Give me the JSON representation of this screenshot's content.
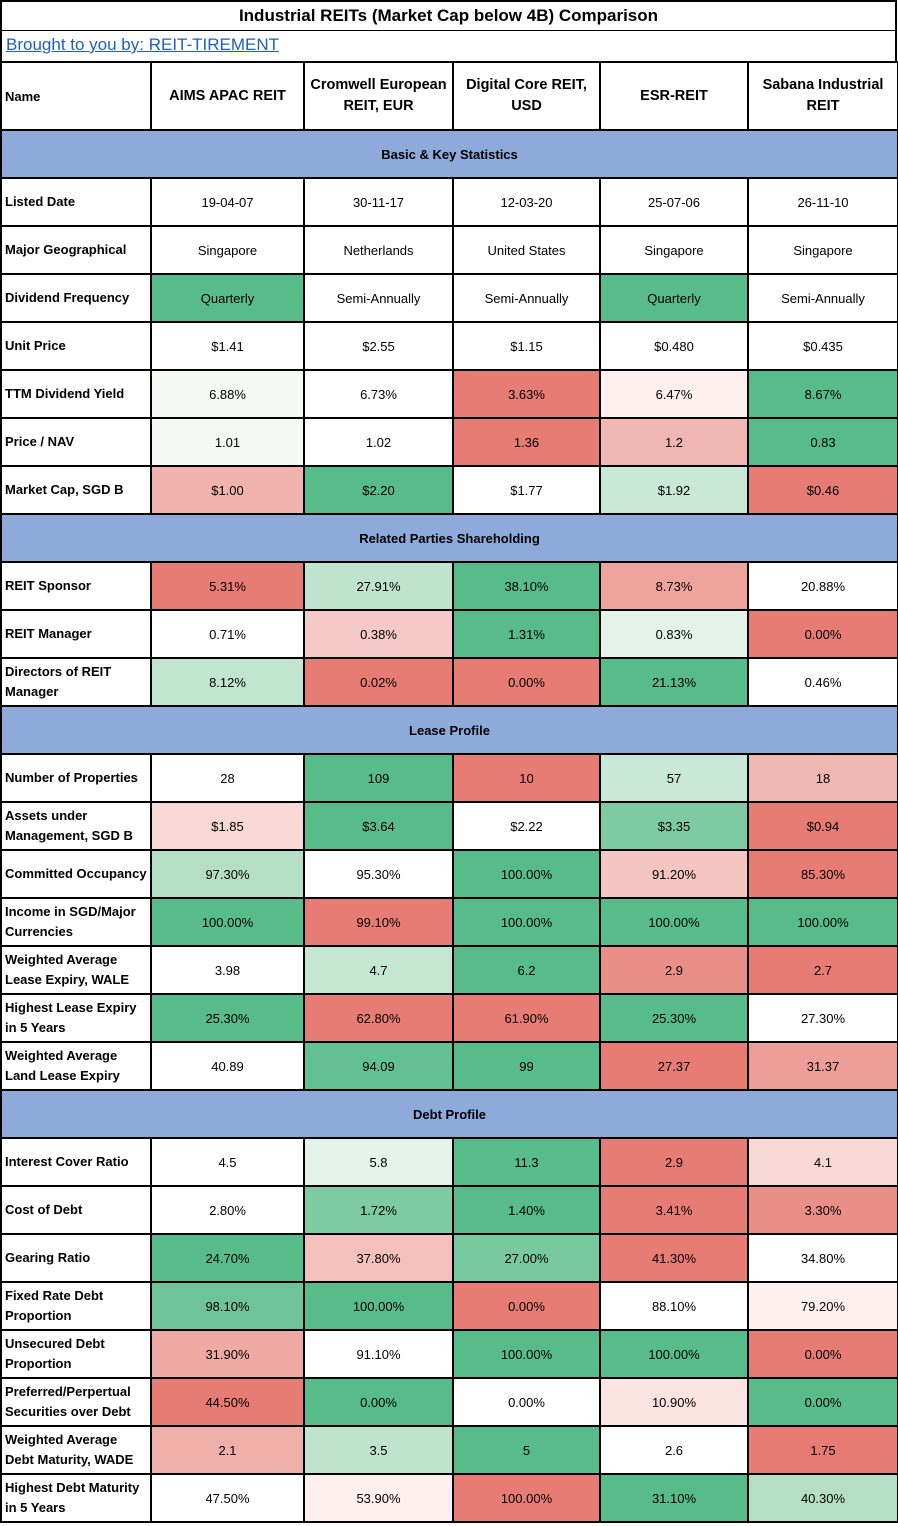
{
  "title": "Industrial REITs (Market Cap below 4B) Comparison",
  "link_text": "Brought to you by: REIT-TIREMENT",
  "header": {
    "name_label": "Name",
    "columns": [
      "AIMS APAC REIT",
      "Cromwell European REIT, EUR",
      "Digital Core REIT, USD",
      "ESR-REIT",
      "Sabana Industrial REIT"
    ]
  },
  "colors": {
    "section_bg": "#8eaadb",
    "green_strong": "#57bb8a",
    "red_strong": "#e67c73",
    "white": "#ffffff"
  },
  "sections": [
    {
      "title": "Basic & Key Statistics",
      "rows": [
        {
          "label": "Listed Date",
          "values": [
            "19-04-07",
            "30-11-17",
            "12-03-20",
            "25-07-06",
            "26-11-10"
          ],
          "colors": [
            "#ffffff",
            "#ffffff",
            "#ffffff",
            "#ffffff",
            "#ffffff"
          ]
        },
        {
          "label": "Major Geographical",
          "values": [
            "Singapore",
            "Netherlands",
            "United States",
            "Singapore",
            "Singapore"
          ],
          "colors": [
            "#ffffff",
            "#ffffff",
            "#ffffff",
            "#ffffff",
            "#ffffff"
          ]
        },
        {
          "label": "Dividend Frequency",
          "values": [
            "Quarterly",
            "Semi-Annually",
            "Semi-Annually",
            "Quarterly",
            "Semi-Annually"
          ],
          "colors": [
            "#57bb8a",
            "#ffffff",
            "#ffffff",
            "#57bb8a",
            "#ffffff"
          ]
        },
        {
          "label": "Unit Price",
          "values": [
            "$1.41",
            "$2.55",
            "$1.15",
            "$0.480",
            "$0.435"
          ],
          "colors": [
            "#ffffff",
            "#ffffff",
            "#ffffff",
            "#ffffff",
            "#ffffff"
          ]
        },
        {
          "label": "TTM Dividend Yield",
          "values": [
            "6.88%",
            "6.73%",
            "3.63%",
            "6.47%",
            "8.67%"
          ],
          "colors": [
            "#f4f9f5",
            "#ffffff",
            "#e67c73",
            "#fdf0ef",
            "#57bb8a"
          ]
        },
        {
          "label": "Price / NAV",
          "values": [
            "1.01",
            "1.02",
            "1.36",
            "1.2",
            "0.83"
          ],
          "colors": [
            "#f4f9f5",
            "#ffffff",
            "#e67c73",
            "#f0b6b1",
            "#57bb8a"
          ]
        },
        {
          "label": "Market Cap, SGD B",
          "values": [
            "$1.00",
            "$2.20",
            "$1.77",
            "$1.92",
            "$0.46"
          ],
          "colors": [
            "#f0b3ae",
            "#57bb8a",
            "#ffffff",
            "#c9e8d6",
            "#e67c73"
          ]
        }
      ]
    },
    {
      "title": "Related Parties Shareholding",
      "rows": [
        {
          "label": "REIT Sponsor",
          "values": [
            "5.31%",
            "27.91%",
            "38.10%",
            "8.73%",
            "20.88%"
          ],
          "colors": [
            "#e67c73",
            "#bfe3cd",
            "#57bb8a",
            "#eea39c",
            "#ffffff"
          ]
        },
        {
          "label": "REIT Manager",
          "values": [
            "0.71%",
            "0.38%",
            "1.31%",
            "0.83%",
            "0.00%"
          ],
          "colors": [
            "#ffffff",
            "#f5c9c5",
            "#57bb8a",
            "#e3f3e9",
            "#e67c73"
          ]
        },
        {
          "label": "Directors of REIT Manager",
          "values": [
            "8.12%",
            "0.02%",
            "0.00%",
            "21.13%",
            "0.46%"
          ],
          "colors": [
            "#c2e5cf",
            "#e67c73",
            "#e67c73",
            "#57bb8a",
            "#ffffff"
          ]
        }
      ]
    },
    {
      "title": "Lease Profile",
      "rows": [
        {
          "label": "Number of Properties",
          "values": [
            "28",
            "109",
            "10",
            "57",
            "18"
          ],
          "colors": [
            "#ffffff",
            "#57bb8a",
            "#e67c73",
            "#c9e8d6",
            "#f0b6b1"
          ]
        },
        {
          "label": "Assets under Management, SGD B",
          "values": [
            "$1.85",
            "$3.64",
            "$2.22",
            "$3.35",
            "$0.94"
          ],
          "colors": [
            "#f8d8d5",
            "#57bb8a",
            "#ffffff",
            "#7ecba2",
            "#e67c73"
          ]
        },
        {
          "label": "Committed Occupancy",
          "values": [
            "97.30%",
            "95.30%",
            "100.00%",
            "91.20%",
            "85.30%"
          ],
          "colors": [
            "#b5dfc4",
            "#ffffff",
            "#57bb8a",
            "#f5c5c1",
            "#e67c73"
          ]
        },
        {
          "label": "Income in SGD/Major Currencies",
          "values": [
            "100.00%",
            "99.10%",
            "100.00%",
            "100.00%",
            "100.00%"
          ],
          "colors": [
            "#57bb8a",
            "#e67c73",
            "#57bb8a",
            "#57bb8a",
            "#57bb8a"
          ]
        },
        {
          "label": "Weighted Average Lease Expiry, WALE",
          "values": [
            "3.98",
            "4.7",
            "6.2",
            "2.9",
            "2.7"
          ],
          "colors": [
            "#ffffff",
            "#c5e6d1",
            "#57bb8a",
            "#ea8f88",
            "#e67c73"
          ]
        },
        {
          "label": "Highest Lease Expiry in 5 Years",
          "values": [
            "25.30%",
            "62.80%",
            "61.90%",
            "25.30%",
            "27.30%"
          ],
          "colors": [
            "#57bb8a",
            "#e67c73",
            "#e67c73",
            "#57bb8a",
            "#ffffff"
          ]
        },
        {
          "label": "Weighted Average Land Lease Expiry",
          "values": [
            "40.89",
            "94.09",
            "99",
            "27.37",
            "31.37"
          ],
          "colors": [
            "#ffffff",
            "#62c092",
            "#57bb8a",
            "#e67c73",
            "#ee9e98"
          ]
        }
      ]
    },
    {
      "title": "Debt Profile",
      "rows": [
        {
          "label": "Interest Cover Ratio",
          "values": [
            "4.5",
            "5.8",
            "11.3",
            "2.9",
            "4.1"
          ],
          "colors": [
            "#ffffff",
            "#e3f3e9",
            "#57bb8a",
            "#e67c73",
            "#f8d8d5"
          ]
        },
        {
          "label": "Cost of Debt",
          "values": [
            "2.80%",
            "1.72%",
            "1.40%",
            "3.41%",
            "3.30%"
          ],
          "colors": [
            "#ffffff",
            "#7ecba2",
            "#57bb8a",
            "#e67c73",
            "#ea8f88"
          ]
        },
        {
          "label": "Gearing Ratio",
          "values": [
            "24.70%",
            "37.80%",
            "27.00%",
            "41.30%",
            "34.80%"
          ],
          "colors": [
            "#57bb8a",
            "#f3c0bb",
            "#79c99f",
            "#e67c73",
            "#ffffff"
          ]
        },
        {
          "label": "Fixed Rate Debt Proportion",
          "values": [
            "98.10%",
            "100.00%",
            "0.00%",
            "88.10%",
            "79.20%"
          ],
          "colors": [
            "#6ec498",
            "#57bb8a",
            "#e67c73",
            "#ffffff",
            "#fdf0ef"
          ]
        },
        {
          "label": "Unsecured Debt Proportion",
          "values": [
            "31.90%",
            "91.10%",
            "100.00%",
            "100.00%",
            "0.00%"
          ],
          "colors": [
            "#f0aaa4",
            "#ffffff",
            "#57bb8a",
            "#57bb8a",
            "#e67c73"
          ]
        },
        {
          "label": "Preferred/Perpertual Securities over Debt",
          "values": [
            "44.50%",
            "0.00%",
            "0.00%",
            "10.90%",
            "0.00%"
          ],
          "colors": [
            "#e67c73",
            "#57bb8a",
            "#ffffff",
            "#fbe3e1",
            "#57bb8a"
          ]
        },
        {
          "label": "Weighted Average Debt Maturity, WADE",
          "values": [
            "2.1",
            "3.5",
            "5",
            "2.6",
            "1.75"
          ],
          "colors": [
            "#f0b0aa",
            "#bfe3cd",
            "#57bb8a",
            "#ffffff",
            "#e67c73"
          ]
        },
        {
          "label": "Highest Debt Maturity in 5 Years",
          "values": [
            "47.50%",
            "53.90%",
            "100.00%",
            "31.10%",
            "40.30%"
          ],
          "colors": [
            "#ffffff",
            "#fdf0ef",
            "#e67c73",
            "#57bb8a",
            "#b5dfc4"
          ]
        }
      ]
    }
  ]
}
